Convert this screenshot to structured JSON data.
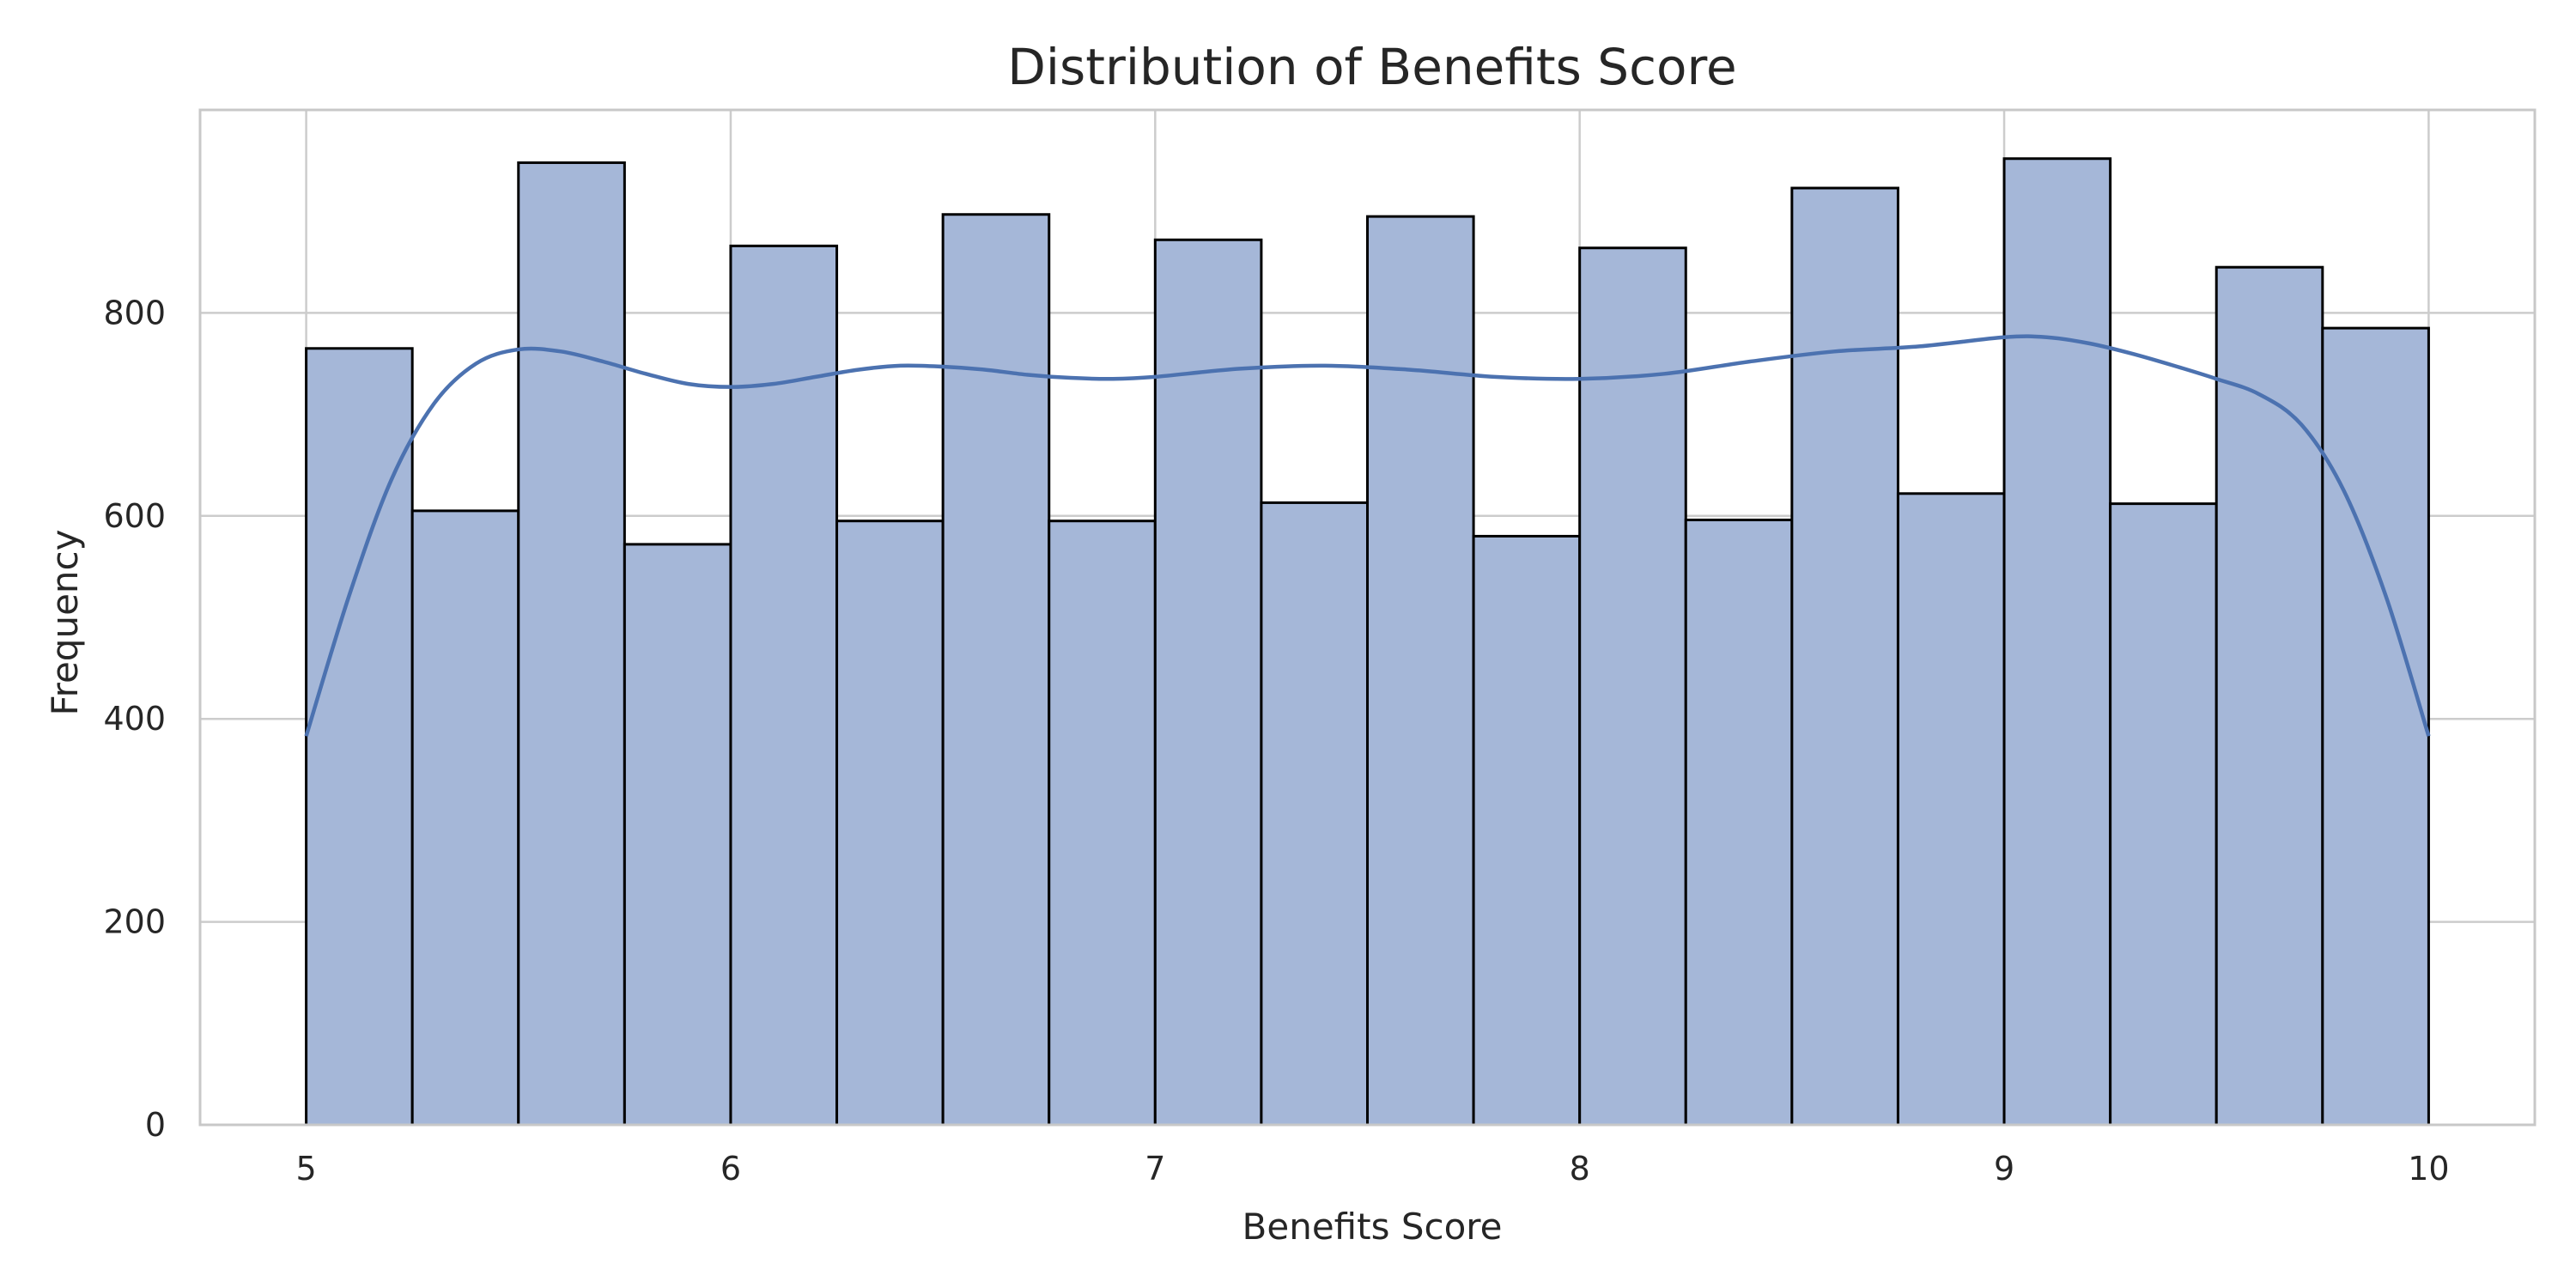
{
  "chart_data": {
    "type": "bar",
    "title": "Distribution of Benefits Score",
    "xlabel": "Benefits Score",
    "ylabel": "Frequency",
    "xlim": [
      4.75,
      10.25
    ],
    "ylim": [
      0,
      1000
    ],
    "xticks": [
      5,
      6,
      7,
      8,
      9,
      10
    ],
    "yticks": [
      0,
      200,
      400,
      600,
      800
    ],
    "grid": true,
    "bins": [
      {
        "start": 5.0,
        "end": 5.25,
        "count": 765
      },
      {
        "start": 5.25,
        "end": 5.5,
        "count": 605
      },
      {
        "start": 5.5,
        "end": 5.75,
        "count": 948
      },
      {
        "start": 5.75,
        "end": 6.0,
        "count": 572
      },
      {
        "start": 6.0,
        "end": 6.25,
        "count": 866
      },
      {
        "start": 6.25,
        "end": 6.5,
        "count": 595
      },
      {
        "start": 6.5,
        "end": 6.75,
        "count": 897
      },
      {
        "start": 6.75,
        "end": 7.0,
        "count": 595
      },
      {
        "start": 7.0,
        "end": 7.25,
        "count": 872
      },
      {
        "start": 7.25,
        "end": 7.5,
        "count": 613
      },
      {
        "start": 7.5,
        "end": 7.75,
        "count": 895
      },
      {
        "start": 7.75,
        "end": 8.0,
        "count": 580
      },
      {
        "start": 8.0,
        "end": 8.25,
        "count": 864
      },
      {
        "start": 8.25,
        "end": 8.5,
        "count": 596
      },
      {
        "start": 8.5,
        "end": 8.75,
        "count": 923
      },
      {
        "start": 8.75,
        "end": 9.0,
        "count": 622
      },
      {
        "start": 9.0,
        "end": 9.25,
        "count": 952
      },
      {
        "start": 9.25,
        "end": 9.5,
        "count": 612
      },
      {
        "start": 9.5,
        "end": 9.75,
        "count": 845
      },
      {
        "start": 9.75,
        "end": 10.0,
        "count": 785
      }
    ],
    "kde": {
      "x": [
        5.0,
        5.1,
        5.2,
        5.3,
        5.4,
        5.5,
        5.6,
        5.7,
        5.8,
        5.9,
        6.0,
        6.1,
        6.2,
        6.3,
        6.4,
        6.5,
        6.6,
        6.7,
        6.8,
        6.9,
        7.0,
        7.2,
        7.4,
        7.6,
        7.8,
        8.0,
        8.2,
        8.4,
        8.6,
        8.8,
        9.0,
        9.1,
        9.2,
        9.3,
        9.4,
        9.5,
        9.6,
        9.7,
        9.8,
        9.9,
        10.0
      ],
      "y": [
        383,
        520,
        635,
        710,
        750,
        764,
        762,
        752,
        740,
        730,
        727,
        730,
        737,
        744,
        748,
        747,
        744,
        739,
        736,
        735,
        737,
        745,
        748,
        744,
        737,
        735,
        740,
        752,
        762,
        767,
        776,
        776,
        770,
        760,
        748,
        735,
        720,
        690,
        625,
        520,
        383
      ]
    },
    "colors": {
      "bar_fill": "#a5b7d8",
      "bar_edge": "#000000",
      "kde_line": "#4c72b0"
    }
  }
}
